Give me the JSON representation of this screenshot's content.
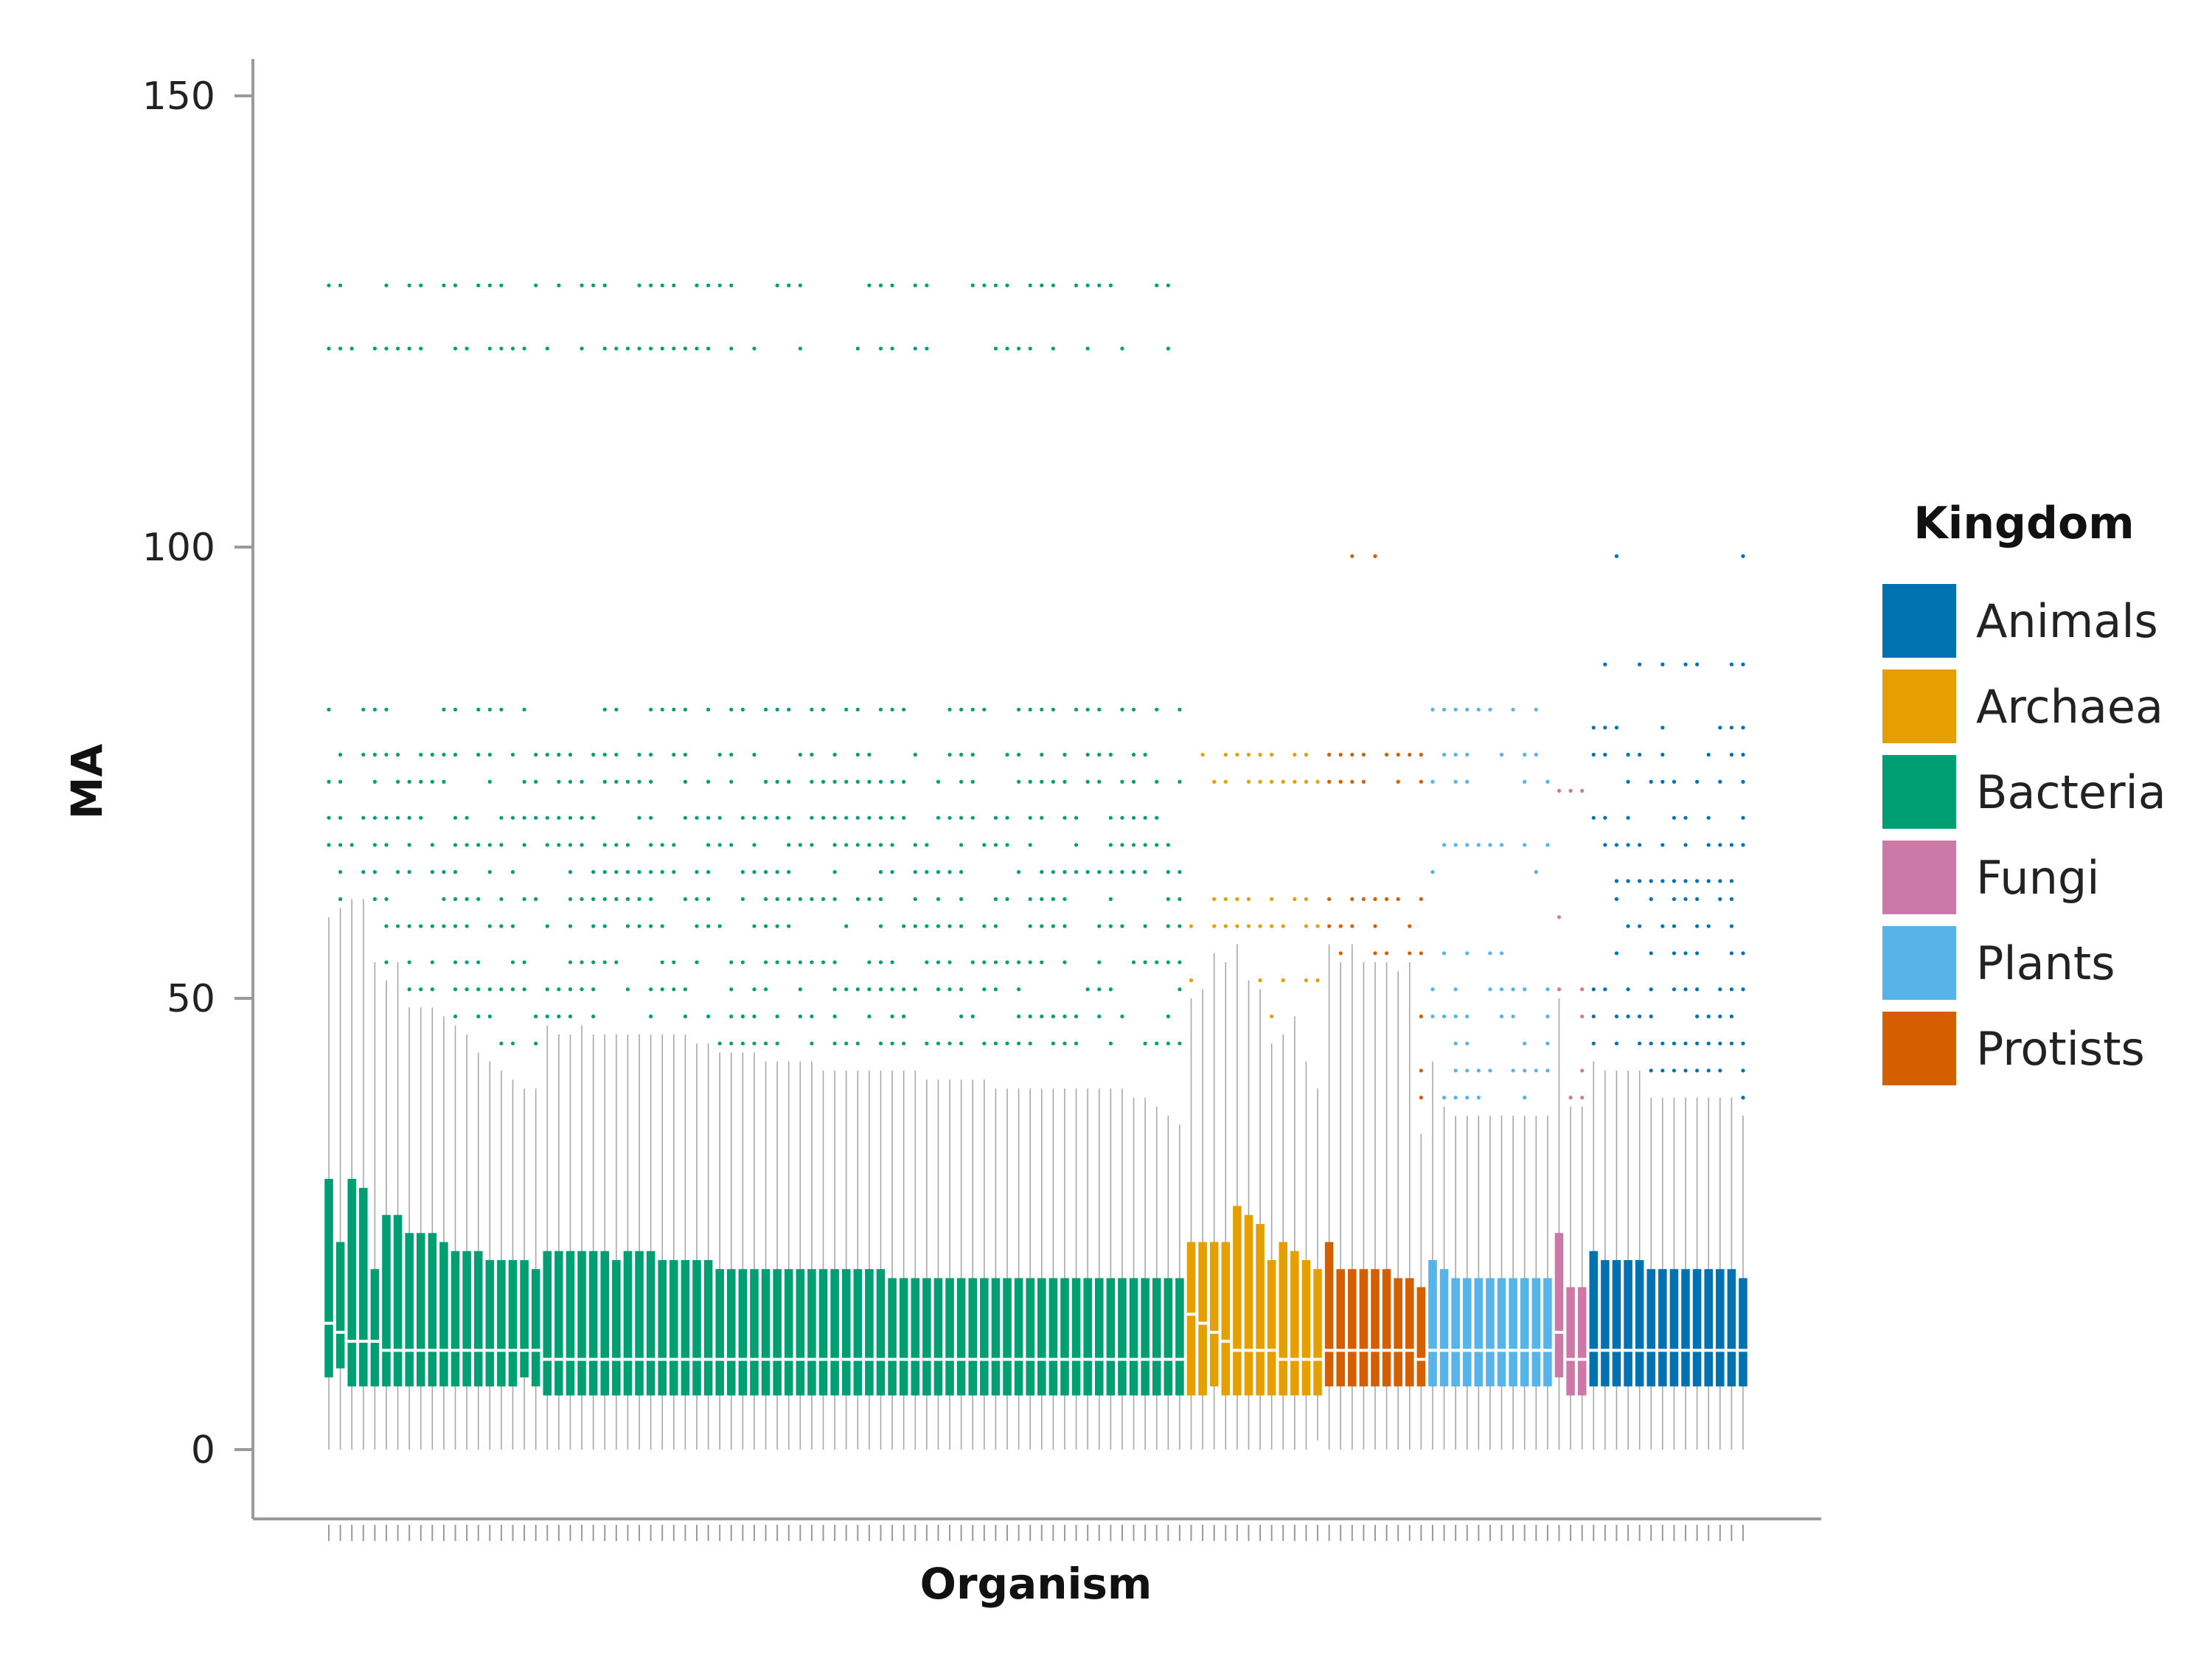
{
  "chart_data": {
    "type": "boxplot",
    "xlabel": "Organism",
    "ylabel": "MA",
    "ylim": [
      -7,
      154
    ],
    "yticks": [
      0,
      50,
      100,
      150
    ],
    "grid": false,
    "legend": {
      "title": "Kingdom",
      "placement": "right",
      "entries": [
        {
          "name": "Animals",
          "color": "#0072B2"
        },
        {
          "name": "Archaea",
          "color": "#E69F00"
        },
        {
          "name": "Bacteria",
          "color": "#009E73"
        },
        {
          "name": "Fungi",
          "color": "#CC79A7"
        },
        {
          "name": "Plants",
          "color": "#56B4E9"
        },
        {
          "name": "Protists",
          "color": "#D55E00"
        }
      ]
    },
    "groups": [
      {
        "kingdom": "Bacteria",
        "boxes": [
          [
            0,
            8,
            14,
            30,
            59
          ],
          [
            0,
            9,
            13,
            23,
            60
          ],
          [
            0,
            7,
            12,
            30,
            61
          ],
          [
            0,
            7,
            12,
            29,
            61
          ],
          [
            0,
            7,
            12,
            20,
            54
          ],
          [
            0,
            7,
            11,
            26,
            52
          ],
          [
            0,
            7,
            11,
            26,
            54
          ],
          [
            0,
            7,
            11,
            24,
            49
          ],
          [
            0,
            7,
            11,
            24,
            49
          ],
          [
            0,
            7,
            11,
            24,
            49
          ],
          [
            0,
            7,
            11,
            23,
            48
          ],
          [
            0,
            7,
            11,
            22,
            47
          ],
          [
            0,
            7,
            11,
            22,
            46
          ],
          [
            0,
            7,
            11,
            22,
            44
          ],
          [
            0,
            7,
            11,
            21,
            43
          ],
          [
            0,
            7,
            11,
            21,
            42
          ],
          [
            0,
            7,
            11,
            21,
            41
          ],
          [
            0,
            8,
            11,
            21,
            40
          ],
          [
            0,
            7,
            11,
            20,
            40
          ],
          [
            0,
            6,
            10,
            22,
            47
          ],
          [
            0,
            6,
            10,
            22,
            46
          ],
          [
            0,
            6,
            10,
            22,
            46
          ],
          [
            0,
            6,
            10,
            22,
            47
          ],
          [
            0,
            6,
            10,
            22,
            46
          ],
          [
            0,
            6,
            10,
            22,
            46
          ],
          [
            0,
            6,
            10,
            21,
            46
          ],
          [
            0,
            6,
            10,
            22,
            46
          ],
          [
            0,
            6,
            10,
            22,
            46
          ],
          [
            0,
            6,
            10,
            22,
            46
          ],
          [
            0,
            6,
            10,
            21,
            46
          ],
          [
            0,
            6,
            10,
            21,
            46
          ],
          [
            0,
            6,
            10,
            21,
            46
          ],
          [
            0,
            6,
            10,
            21,
            45
          ],
          [
            0,
            6,
            10,
            21,
            45
          ],
          [
            0,
            6,
            10,
            20,
            44
          ],
          [
            0,
            6,
            10,
            20,
            44
          ],
          [
            0,
            6,
            10,
            20,
            44
          ],
          [
            0,
            6,
            10,
            20,
            44
          ],
          [
            0,
            6,
            10,
            20,
            43
          ],
          [
            0,
            6,
            10,
            20,
            43
          ],
          [
            0,
            6,
            10,
            20,
            43
          ],
          [
            0,
            6,
            10,
            20,
            43
          ],
          [
            0,
            6,
            10,
            20,
            43
          ],
          [
            0,
            6,
            10,
            20,
            42
          ],
          [
            0,
            6,
            10,
            20,
            42
          ],
          [
            0,
            6,
            10,
            20,
            42
          ],
          [
            0,
            6,
            10,
            20,
            42
          ],
          [
            0,
            6,
            10,
            20,
            42
          ],
          [
            0,
            6,
            10,
            20,
            42
          ],
          [
            0,
            6,
            10,
            19,
            42
          ],
          [
            0,
            6,
            10,
            19,
            42
          ],
          [
            0,
            6,
            10,
            19,
            42
          ],
          [
            0,
            6,
            10,
            19,
            41
          ],
          [
            0,
            6,
            10,
            19,
            41
          ],
          [
            0,
            6,
            10,
            19,
            41
          ],
          [
            0,
            6,
            10,
            19,
            41
          ],
          [
            0,
            6,
            10,
            19,
            41
          ],
          [
            0,
            6,
            10,
            19,
            41
          ],
          [
            0,
            6,
            10,
            19,
            40
          ],
          [
            0,
            6,
            10,
            19,
            40
          ],
          [
            0,
            6,
            10,
            19,
            40
          ],
          [
            0,
            6,
            10,
            19,
            40
          ],
          [
            0,
            6,
            10,
            19,
            40
          ],
          [
            0,
            6,
            10,
            19,
            40
          ],
          [
            0,
            6,
            10,
            19,
            40
          ],
          [
            0,
            6,
            10,
            19,
            40
          ],
          [
            0,
            6,
            10,
            19,
            40
          ],
          [
            0,
            6,
            10,
            19,
            40
          ],
          [
            0,
            6,
            10,
            19,
            40
          ],
          [
            0,
            6,
            10,
            19,
            40
          ],
          [
            0,
            6,
            10,
            19,
            39
          ],
          [
            0,
            6,
            10,
            19,
            39
          ],
          [
            0,
            6,
            10,
            19,
            38
          ],
          [
            0,
            6,
            10,
            19,
            37
          ],
          [
            0,
            6,
            10,
            19,
            36
          ]
        ]
      },
      {
        "kingdom": "Archaea",
        "boxes": [
          [
            0,
            6,
            15,
            23,
            50
          ],
          [
            0,
            6,
            14,
            23,
            51
          ],
          [
            0,
            7,
            13,
            23,
            55
          ],
          [
            0,
            6,
            12,
            23,
            54
          ],
          [
            0,
            6,
            11,
            27,
            56
          ],
          [
            0,
            6,
            11,
            26,
            52
          ],
          [
            0,
            6,
            11,
            25,
            51
          ],
          [
            0,
            6,
            11,
            21,
            45
          ],
          [
            0,
            6,
            10,
            23,
            46
          ],
          [
            0,
            6,
            10,
            22,
            48
          ],
          [
            0,
            6,
            10,
            21,
            43
          ],
          [
            1,
            6,
            10,
            20,
            40
          ]
        ]
      },
      {
        "kingdom": "Protists",
        "boxes": [
          [
            0,
            7,
            11,
            23,
            56
          ],
          [
            0,
            7,
            11,
            20,
            54
          ],
          [
            0,
            7,
            11,
            20,
            56
          ],
          [
            0,
            7,
            11,
            20,
            54
          ],
          [
            0,
            7,
            11,
            20,
            54
          ],
          [
            0,
            7,
            11,
            20,
            54
          ],
          [
            0,
            7,
            11,
            19,
            53
          ],
          [
            0,
            7,
            11,
            19,
            54
          ],
          [
            0,
            7,
            10,
            18,
            35
          ]
        ]
      },
      {
        "kingdom": "Plants",
        "boxes": [
          [
            0,
            7,
            11,
            21,
            43
          ],
          [
            0,
            7,
            11,
            20,
            38
          ],
          [
            0,
            7,
            11,
            19,
            37
          ],
          [
            0,
            7,
            11,
            19,
            37
          ],
          [
            0,
            7,
            11,
            19,
            37
          ],
          [
            0,
            7,
            11,
            19,
            37
          ],
          [
            0,
            7,
            11,
            19,
            37
          ],
          [
            0,
            7,
            11,
            19,
            37
          ],
          [
            0,
            7,
            11,
            19,
            37
          ],
          [
            0,
            7,
            11,
            19,
            37
          ],
          [
            0,
            7,
            11,
            19,
            37
          ]
        ]
      },
      {
        "kingdom": "Fungi",
        "boxes": [
          [
            0,
            8,
            13,
            24,
            50
          ],
          [
            0,
            6,
            10,
            18,
            38
          ],
          [
            0,
            6,
            10,
            18,
            38
          ]
        ]
      },
      {
        "kingdom": "Animals",
        "boxes": [
          [
            0,
            7,
            11,
            22,
            43
          ],
          [
            0,
            7,
            11,
            21,
            42
          ],
          [
            0,
            7,
            11,
            21,
            42
          ],
          [
            0,
            7,
            11,
            21,
            42
          ],
          [
            0,
            7,
            11,
            21,
            42
          ],
          [
            0,
            7,
            11,
            20,
            39
          ],
          [
            0,
            7,
            11,
            20,
            39
          ],
          [
            0,
            7,
            11,
            20,
            39
          ],
          [
            0,
            7,
            11,
            20,
            39
          ],
          [
            0,
            7,
            11,
            20,
            39
          ],
          [
            0,
            7,
            11,
            20,
            39
          ],
          [
            0,
            7,
            11,
            20,
            39
          ],
          [
            0,
            7,
            11,
            20,
            39
          ],
          [
            0,
            7,
            11,
            19,
            37
          ]
        ]
      }
    ],
    "outlier_levels": {
      "Bacteria": [
        122,
        129,
        82,
        77,
        74,
        70,
        67,
        64,
        61,
        58,
        54,
        51,
        48,
        45
      ],
      "Archaea": [
        77,
        74,
        61,
        58,
        52,
        48
      ],
      "Protists": [
        99,
        77,
        74,
        61,
        58,
        55,
        51,
        48,
        45,
        42,
        39,
        36
      ],
      "Plants": [
        82,
        77,
        74,
        67,
        64,
        55,
        51,
        48,
        45,
        42,
        39
      ],
      "Fungi": [
        73,
        59,
        55,
        51,
        48,
        45,
        42,
        39,
        37
      ],
      "Animals": [
        99,
        87,
        80,
        77,
        74,
        70,
        67,
        63,
        61,
        58,
        55,
        51,
        48,
        45,
        42,
        39
      ]
    }
  }
}
